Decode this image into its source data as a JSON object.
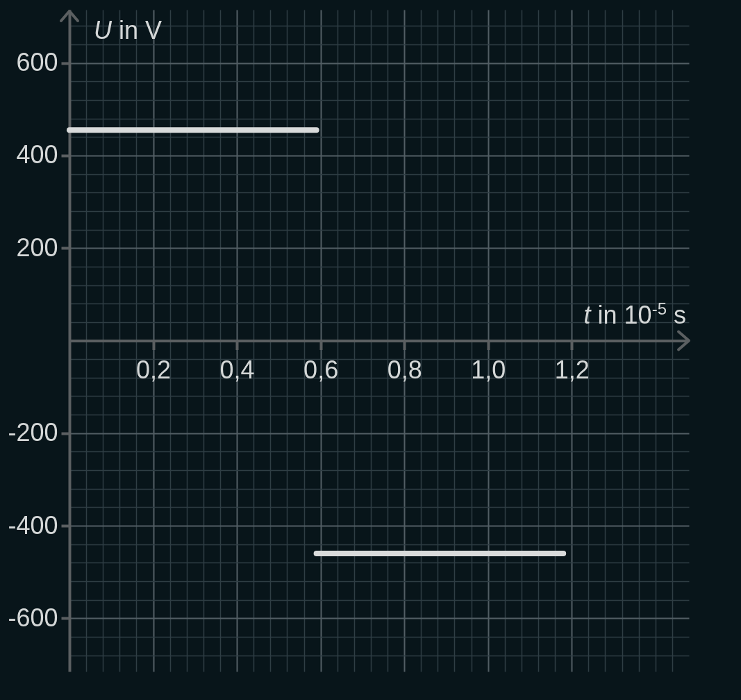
{
  "chart_data": {
    "type": "line",
    "xlabel": "t in 10$^{-5}$ s",
    "ylabel": "U in V",
    "series": [
      {
        "color": "#d9dbdb",
        "x": [
          0,
          0.59
        ],
        "values": [
          455,
          455
        ]
      },
      {
        "color": "#d9dbdb",
        "x": [
          0.59,
          1.18
        ],
        "values": [
          -460,
          -460
        ]
      }
    ],
    "xlim": [
      0,
      1.48
    ],
    "ylim": [
      -715,
      715
    ],
    "xticks": [
      {
        "value": 0.04,
        "label": null
      },
      {
        "value": 0.08,
        "label": null
      },
      {
        "value": 0.12,
        "label": null
      },
      {
        "value": 0.16,
        "label": null
      },
      {
        "value": 0.2,
        "label": "0,2"
      },
      {
        "value": 0.24,
        "label": null
      },
      {
        "value": 0.28,
        "label": null
      },
      {
        "value": 0.32,
        "label": null
      },
      {
        "value": 0.36,
        "label": null
      },
      {
        "value": 0.4,
        "label": "0,4"
      },
      {
        "value": 0.44,
        "label": null
      },
      {
        "value": 0.48,
        "label": null
      },
      {
        "value": 0.52,
        "label": null
      },
      {
        "value": 0.56,
        "label": null
      },
      {
        "value": 0.6,
        "label": "0,6"
      },
      {
        "value": 0.64,
        "label": null
      },
      {
        "value": 0.68,
        "label": null
      },
      {
        "value": 0.72,
        "label": null
      },
      {
        "value": 0.76,
        "label": null
      },
      {
        "value": 0.8,
        "label": "0,8"
      },
      {
        "value": 0.84,
        "label": null
      },
      {
        "value": 0.88,
        "label": null
      },
      {
        "value": 0.92,
        "label": null
      },
      {
        "value": 0.96,
        "label": null
      },
      {
        "value": 1.0,
        "label": "1,0"
      },
      {
        "value": 1.04,
        "label": null
      },
      {
        "value": 1.08,
        "label": null
      },
      {
        "value": 1.12,
        "label": null
      },
      {
        "value": 1.16,
        "label": null
      },
      {
        "value": 1.2,
        "label": "1,2"
      },
      {
        "value": 1.24,
        "label": null
      },
      {
        "value": 1.28,
        "label": null
      },
      {
        "value": 1.32,
        "label": null
      },
      {
        "value": 1.36,
        "label": null
      },
      {
        "value": 1.4,
        "label": null
      },
      {
        "value": 1.44,
        "label": null
      }
    ],
    "yticks": [
      {
        "value": -680,
        "label": null
      },
      {
        "value": -640,
        "label": null
      },
      -600,
      {
        "value": -560,
        "label": null
      },
      {
        "value": -520,
        "label": null
      },
      {
        "value": -480,
        "label": null
      },
      {
        "value": -440,
        "label": null
      },
      -400,
      {
        "value": -360,
        "label": null
      },
      {
        "value": -320,
        "label": null
      },
      {
        "value": -280,
        "label": null
      },
      {
        "value": -240,
        "label": null
      },
      -200,
      {
        "value": -160,
        "label": null
      },
      {
        "value": -120,
        "label": null
      },
      {
        "value": -80,
        "label": null
      },
      {
        "value": -40,
        "label": null
      },
      {
        "value": 40,
        "label": null
      },
      {
        "value": 80,
        "label": null
      },
      {
        "value": 120,
        "label": null
      },
      {
        "value": 160,
        "label": null
      },
      200,
      {
        "value": 240,
        "label": null
      },
      {
        "value": 280,
        "label": null
      },
      {
        "value": 320,
        "label": null
      },
      {
        "value": 360,
        "label": null
      },
      400,
      {
        "value": 440,
        "label": null
      },
      {
        "value": 480,
        "label": null
      },
      {
        "value": 520,
        "label": null
      },
      {
        "value": 560,
        "label": null
      },
      600,
      {
        "value": 640,
        "label": null
      },
      {
        "value": 680,
        "label": null
      }
    ],
    "grid": true
  }
}
